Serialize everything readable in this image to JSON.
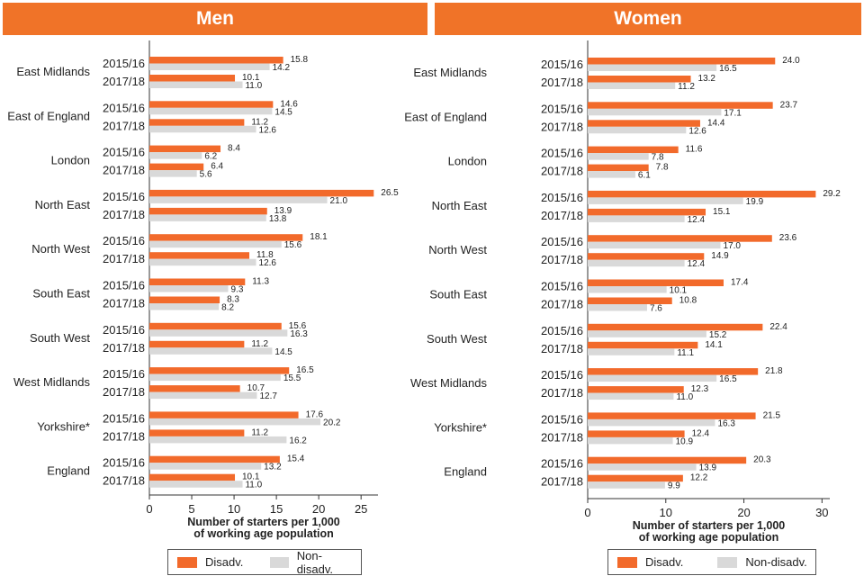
{
  "colors": {
    "disadv": "#f26a2b",
    "nondisadv": "#d9d9d9",
    "header": "#f07328"
  },
  "legend": {
    "disadv": "Disadv.",
    "nondisadv": "Non-disadv."
  },
  "chart_data": [
    {
      "type": "bar",
      "title": "Men",
      "xlabel": "Number of starters per 1,000 of working age population",
      "xlim": [
        0,
        27
      ],
      "xticks": [
        0,
        5,
        10,
        15,
        20,
        25
      ],
      "years": [
        "2015/16",
        "2017/18"
      ],
      "categories": [
        "East Midlands",
        "East of England",
        "London",
        "North East",
        "North West",
        "South East",
        "South West",
        "West Midlands",
        "Yorkshire*",
        "England"
      ],
      "series": [
        {
          "name": "Disadv.",
          "values": [
            [
              15.8,
              10.1
            ],
            [
              14.6,
              11.2
            ],
            [
              8.4,
              6.4
            ],
            [
              26.5,
              13.9
            ],
            [
              18.1,
              11.8
            ],
            [
              11.3,
              8.3
            ],
            [
              15.6,
              11.2
            ],
            [
              16.5,
              10.7
            ],
            [
              17.6,
              11.2
            ],
            [
              15.4,
              10.1
            ]
          ]
        },
        {
          "name": "Non-disadv.",
          "values": [
            [
              14.2,
              11.0
            ],
            [
              14.5,
              12.6
            ],
            [
              6.2,
              5.6
            ],
            [
              21.0,
              13.8
            ],
            [
              15.6,
              12.6
            ],
            [
              9.3,
              8.2
            ],
            [
              16.3,
              14.5
            ],
            [
              15.5,
              12.7
            ],
            [
              20.2,
              16.2
            ],
            [
              13.2,
              11.0
            ]
          ]
        }
      ]
    },
    {
      "type": "bar",
      "title": "Women",
      "xlabel": "Number of starters per 1,000 of working age population",
      "xlim": [
        0,
        31
      ],
      "xticks": [
        0,
        10,
        20,
        30
      ],
      "years": [
        "2015/16",
        "2017/18"
      ],
      "categories": [
        "East Midlands",
        "East of England",
        "London",
        "North East",
        "North West",
        "South East",
        "South West",
        "West Midlands",
        "Yorkshire*",
        "England"
      ],
      "series": [
        {
          "name": "Disadv.",
          "values": [
            [
              24.0,
              13.2
            ],
            [
              23.7,
              14.4
            ],
            [
              11.6,
              7.8
            ],
            [
              29.2,
              15.1
            ],
            [
              23.6,
              14.9
            ],
            [
              17.4,
              10.8
            ],
            [
              22.4,
              14.1
            ],
            [
              21.8,
              12.3
            ],
            [
              21.5,
              12.4
            ],
            [
              20.3,
              12.2
            ]
          ]
        },
        {
          "name": "Non-disadv.",
          "values": [
            [
              16.5,
              11.2
            ],
            [
              17.1,
              12.6
            ],
            [
              7.8,
              6.1
            ],
            [
              19.9,
              12.4
            ],
            [
              17.0,
              12.4
            ],
            [
              10.1,
              7.6
            ],
            [
              15.2,
              11.1
            ],
            [
              16.5,
              11.0
            ],
            [
              16.3,
              10.9
            ],
            [
              13.9,
              9.9
            ]
          ]
        }
      ]
    }
  ]
}
